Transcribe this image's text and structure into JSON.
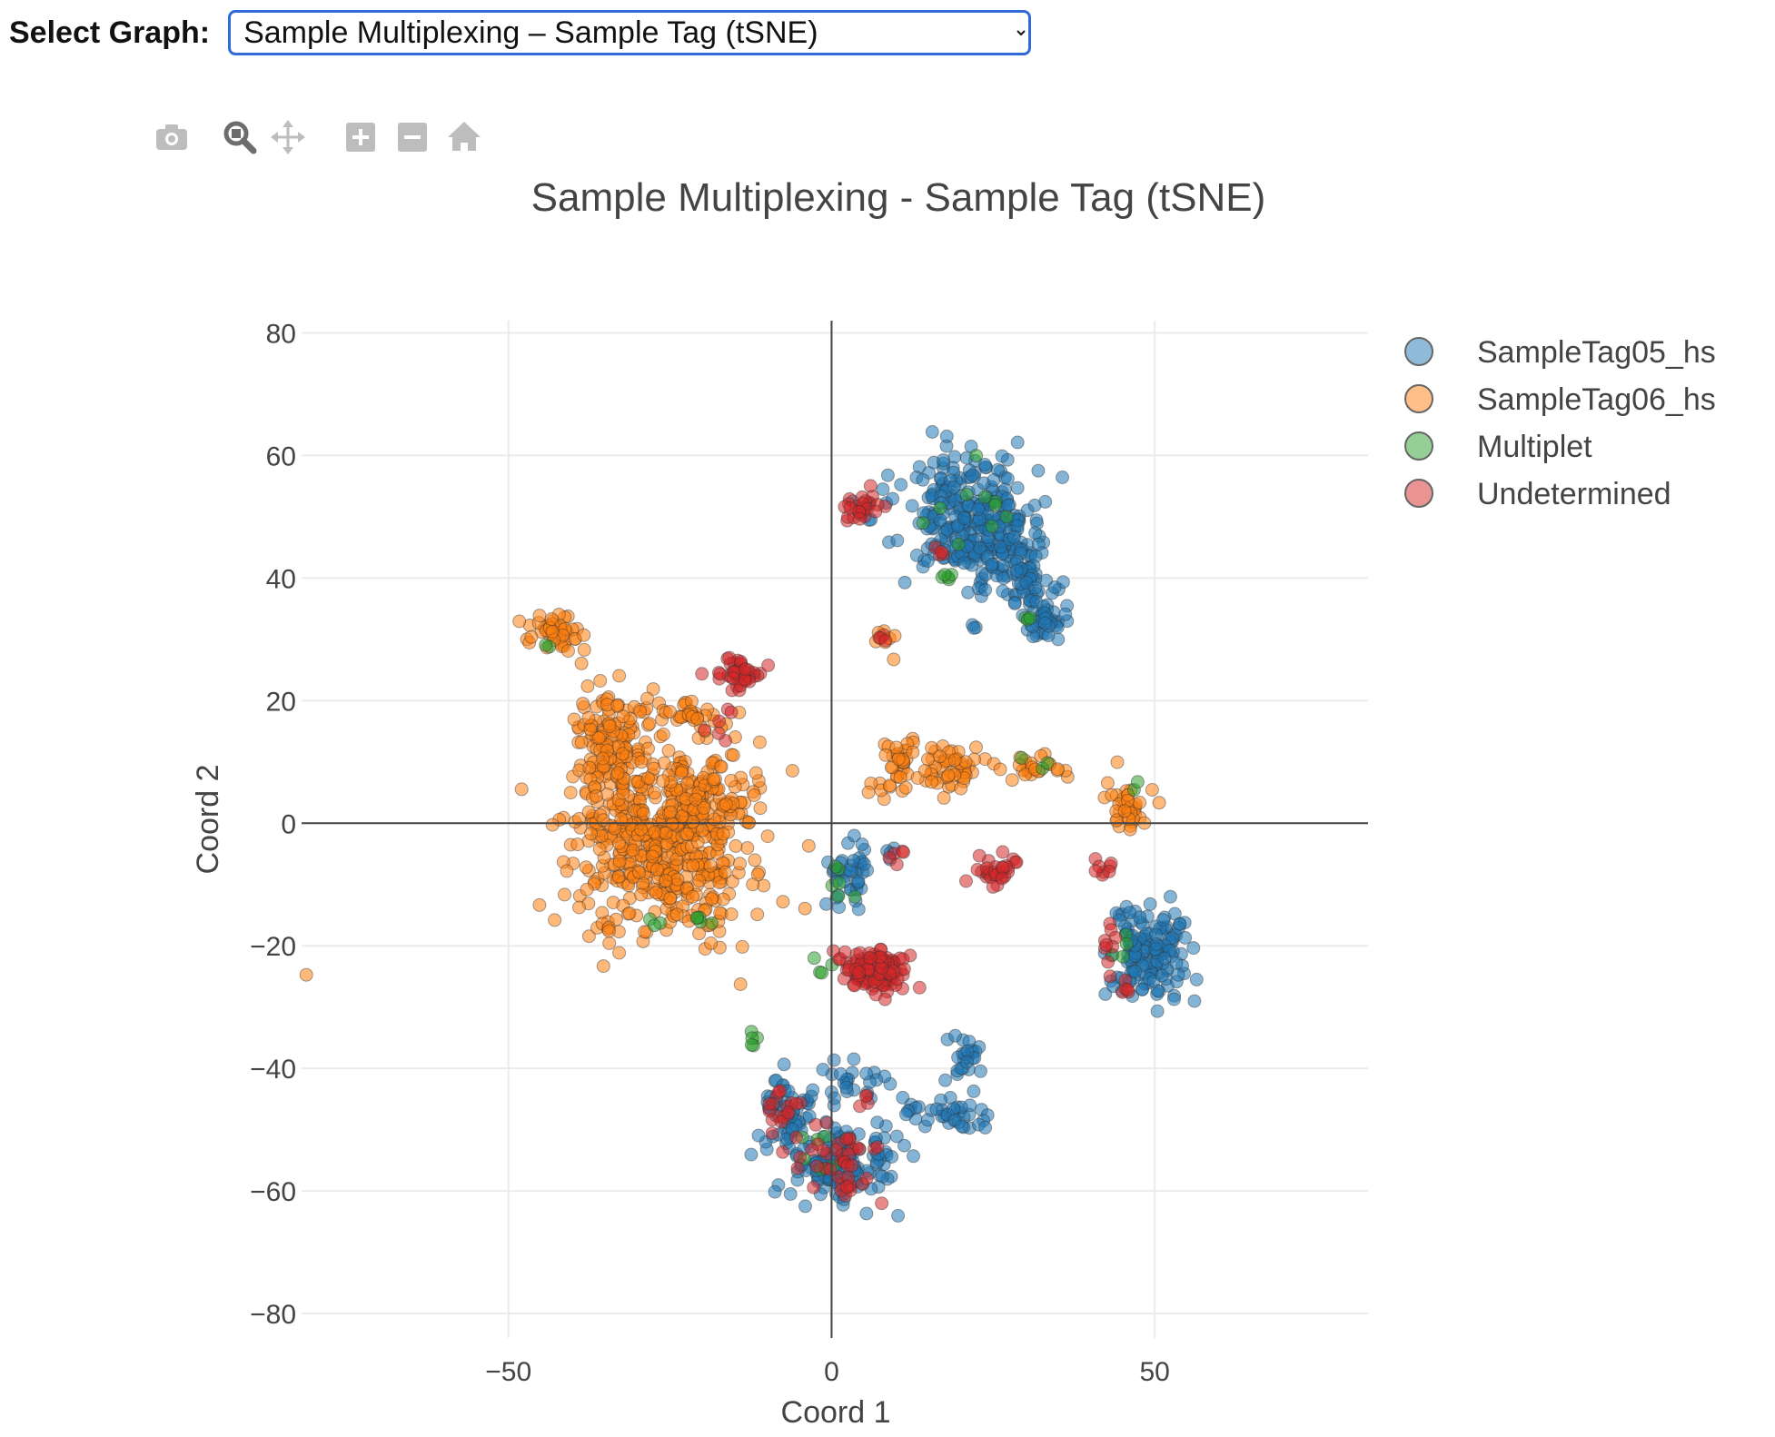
{
  "select": {
    "label": "Select Graph:",
    "value": "Sample Multiplexing – Sample Tag (tSNE)",
    "options": [
      "Sample Multiplexing – Sample Tag (tSNE)"
    ]
  },
  "modebar": {
    "icons": [
      "camera-icon",
      "zoom-icon",
      "pan-icon",
      "zoom-in-icon",
      "zoom-out-icon",
      "home-icon"
    ],
    "icon_color": "#bdbdbd",
    "active_color": "#6d6d6d"
  },
  "chart_data": {
    "type": "scatter",
    "title": "Sample Multiplexing - Sample Tag (tSNE)",
    "xlabel": "Coord 1",
    "ylabel": "Coord 2",
    "xlim": [
      -82,
      83
    ],
    "ylim": [
      -84,
      82
    ],
    "xticks": [
      -50,
      0,
      50
    ],
    "xtick_labels": [
      "−50",
      "0",
      "50"
    ],
    "yticks": [
      80,
      60,
      40,
      20,
      0,
      -20,
      -40,
      -60,
      -80
    ],
    "ytick_labels": [
      "80",
      "60",
      "40",
      "20",
      "0",
      "−20",
      "−40",
      "−60",
      "−80"
    ],
    "grid": true,
    "zero_lines": true,
    "legend_position": "top-right",
    "series": [
      {
        "name": "SampleTag05_hs",
        "color": "#1f77b4",
        "clusters": [
          {
            "cx": 21,
            "cy": 50,
            "sx": 5,
            "sy": 5,
            "n": 260
          },
          {
            "cx": 27,
            "cy": 44,
            "sx": 3,
            "sy": 3,
            "n": 60
          },
          {
            "cx": 30,
            "cy": 38,
            "sx": 2,
            "sy": 2.5,
            "n": 40
          },
          {
            "cx": 33,
            "cy": 33,
            "sx": 2,
            "sy": 1.5,
            "n": 40
          },
          {
            "cx": 6,
            "cy": 51,
            "sx": 1.5,
            "sy": 1.5,
            "n": 8
          },
          {
            "cx": 22,
            "cy": 32,
            "sx": 0.6,
            "sy": 0.6,
            "n": 3
          },
          {
            "cx": 3,
            "cy": -8,
            "sx": 1.8,
            "sy": 2.5,
            "n": 40
          },
          {
            "cx": 9,
            "cy": -5,
            "sx": 0.6,
            "sy": 0.6,
            "n": 4
          },
          {
            "cx": 49,
            "cy": -21,
            "sx": 3,
            "sy": 4,
            "n": 150
          },
          {
            "cx": 21,
            "cy": -38,
            "sx": 1.5,
            "sy": 2,
            "n": 25
          },
          {
            "cx": 19,
            "cy": -48,
            "sx": 3,
            "sy": 1.5,
            "n": 30
          },
          {
            "cx": 12,
            "cy": -47,
            "sx": 2,
            "sy": 1,
            "n": 10
          },
          {
            "cx": 8,
            "cy": -42,
            "sx": 1,
            "sy": 0.5,
            "n": 5
          },
          {
            "cx": 3,
            "cy": -42,
            "sx": 2,
            "sy": 1.5,
            "n": 15
          },
          {
            "cx": -6,
            "cy": -47,
            "sx": 3,
            "sy": 3,
            "n": 60
          },
          {
            "cx": 1,
            "cy": -56,
            "sx": 4,
            "sy": 3.5,
            "n": 130
          }
        ]
      },
      {
        "name": "SampleTag06_hs",
        "color": "#ff7f0e",
        "clusters": [
          {
            "cx": -26,
            "cy": -3,
            "sx": 7,
            "sy": 8,
            "n": 520
          },
          {
            "cx": -19,
            "cy": 3,
            "sx": 4,
            "sy": 4.5,
            "n": 80
          },
          {
            "cx": -34,
            "cy": 13,
            "sx": 3,
            "sy": 4,
            "n": 120
          },
          {
            "cx": -29,
            "cy": 18,
            "sx": 1.5,
            "sy": 1,
            "n": 8
          },
          {
            "cx": -21,
            "cy": 17,
            "sx": 2,
            "sy": 1.5,
            "n": 25
          },
          {
            "cx": -43,
            "cy": 31,
            "sx": 2,
            "sy": 1.5,
            "n": 50
          },
          {
            "cx": -35,
            "cy": -16,
            "sx": 1.5,
            "sy": 1,
            "n": 10
          },
          {
            "cx": -81,
            "cy": -25,
            "sx": 0.2,
            "sy": 0.2,
            "n": 1
          },
          {
            "cx": -6,
            "cy": 8,
            "sx": 0.2,
            "sy": 0.2,
            "n": 1
          },
          {
            "cx": 11,
            "cy": 11,
            "sx": 1.5,
            "sy": 2,
            "n": 30
          },
          {
            "cx": 18,
            "cy": 9,
            "sx": 2.5,
            "sy": 2,
            "n": 50
          },
          {
            "cx": 31,
            "cy": 9,
            "sx": 3,
            "sy": 1,
            "n": 25
          },
          {
            "cx": 8,
            "cy": 5,
            "sx": 2,
            "sy": 1.5,
            "n": 8
          },
          {
            "cx": 46,
            "cy": 3,
            "sx": 1.5,
            "sy": 2,
            "n": 40
          },
          {
            "cx": 8,
            "cy": 31,
            "sx": 0.8,
            "sy": 1,
            "n": 6
          },
          {
            "cx": 9,
            "cy": 27,
            "sx": 0.3,
            "sy": 0.3,
            "n": 1
          }
        ]
      },
      {
        "name": "Multiplet",
        "color": "#2ca02c",
        "clusters": [
          {
            "cx": -12,
            "cy": -36,
            "sx": 0.8,
            "sy": 1.5,
            "n": 5
          },
          {
            "cx": -1,
            "cy": -24,
            "sx": 0.8,
            "sy": 0.8,
            "n": 4
          },
          {
            "cx": -20,
            "cy": -16,
            "sx": 1,
            "sy": 0.6,
            "n": 5
          },
          {
            "cx": -28,
            "cy": -16,
            "sx": 1,
            "sy": 0.5,
            "n": 3
          },
          {
            "cx": 19,
            "cy": 40,
            "sx": 1.5,
            "sy": 0.5,
            "n": 5
          },
          {
            "cx": 30,
            "cy": 33,
            "sx": 0.8,
            "sy": 0.5,
            "n": 3
          },
          {
            "cx": 20,
            "cy": 52,
            "sx": 5,
            "sy": 4,
            "n": 10
          },
          {
            "cx": 1,
            "cy": -8,
            "sx": 1,
            "sy": 2,
            "n": 6
          },
          {
            "cx": 32,
            "cy": 10,
            "sx": 1,
            "sy": 1,
            "n": 3
          },
          {
            "cx": 45,
            "cy": -21,
            "sx": 1,
            "sy": 2,
            "n": 4
          },
          {
            "cx": 47,
            "cy": 6,
            "sx": 0.5,
            "sy": 0.5,
            "n": 2
          },
          {
            "cx": -44,
            "cy": 29,
            "sx": 0.5,
            "sy": 0.5,
            "n": 2
          },
          {
            "cx": -2,
            "cy": -55,
            "sx": 2,
            "sy": 2,
            "n": 6
          }
        ]
      },
      {
        "name": "Undetermined",
        "color": "#d62728",
        "clusters": [
          {
            "cx": 7,
            "cy": -24,
            "sx": 2.5,
            "sy": 1.8,
            "n": 130
          },
          {
            "cx": 26,
            "cy": -8,
            "sx": 1.5,
            "sy": 1.5,
            "n": 30
          },
          {
            "cx": 42,
            "cy": -7,
            "sx": 1,
            "sy": 1.5,
            "n": 8
          },
          {
            "cx": 43,
            "cy": -18,
            "sx": 0.8,
            "sy": 1.5,
            "n": 8
          },
          {
            "cx": 45,
            "cy": -27,
            "sx": 1,
            "sy": 1,
            "n": 6
          },
          {
            "cx": -14,
            "cy": 24,
            "sx": 2,
            "sy": 1.2,
            "n": 45
          },
          {
            "cx": 5,
            "cy": 51,
            "sx": 1.5,
            "sy": 1.2,
            "n": 25
          },
          {
            "cx": -17,
            "cy": 16,
            "sx": 1,
            "sy": 1.5,
            "n": 6
          },
          {
            "cx": -7,
            "cy": -47,
            "sx": 2,
            "sy": 3,
            "n": 20
          },
          {
            "cx": 1,
            "cy": -56,
            "sx": 3.5,
            "sy": 3,
            "n": 40
          },
          {
            "cx": 6,
            "cy": -45,
            "sx": 0.6,
            "sy": 0.6,
            "n": 4
          },
          {
            "cx": 10,
            "cy": -5,
            "sx": 1,
            "sy": 1,
            "n": 5
          },
          {
            "cx": 8,
            "cy": 31,
            "sx": 1,
            "sy": 0.5,
            "n": 4
          },
          {
            "cx": 17,
            "cy": 44,
            "sx": 1,
            "sy": 0.5,
            "n": 4
          }
        ]
      }
    ]
  }
}
